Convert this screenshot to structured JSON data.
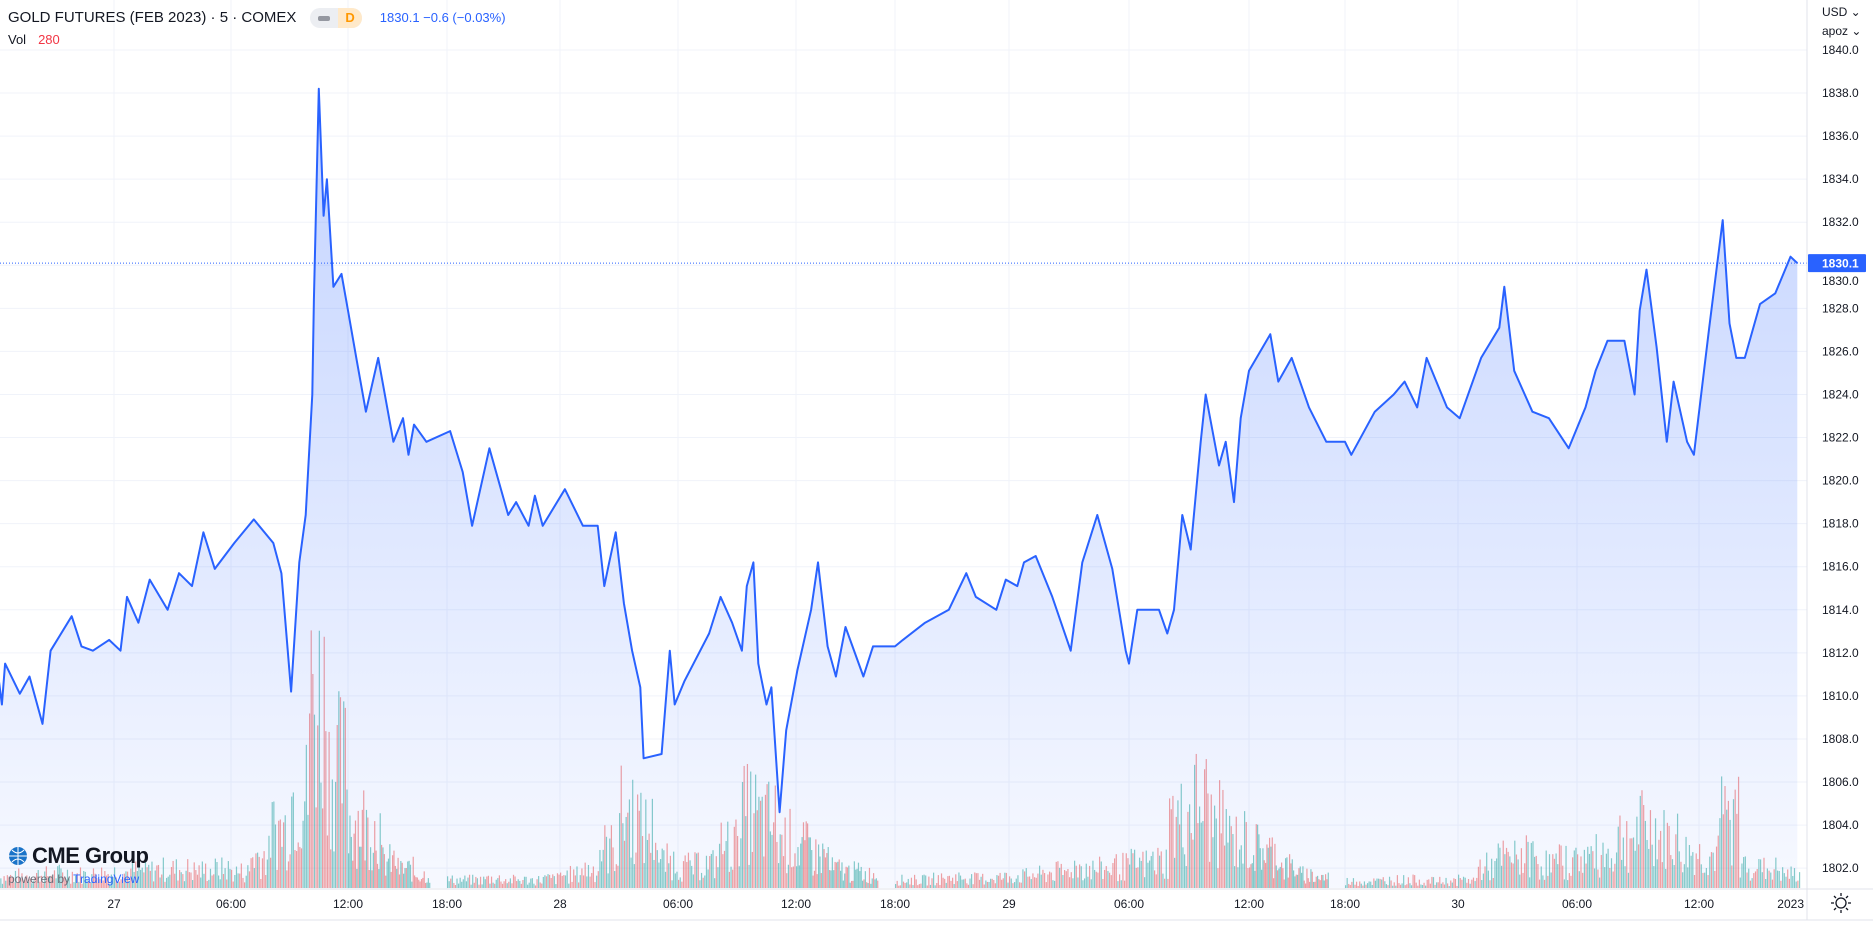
{
  "header": {
    "title": "GOLD FUTURES (FEB 2023) · 5 · COMEX",
    "interval_badge": "D",
    "quote": "1830.1 −0.6 (−0.03%)",
    "vol_label": "Vol",
    "vol_value": "280"
  },
  "price_axis": {
    "currency": "USD ⌄",
    "unit": "apoz ⌄"
  },
  "branding": {
    "logo": "CME Group",
    "powered_by": "powered by",
    "platform": "TradingView"
  },
  "icons": {
    "settings": "sun-gear-icon",
    "logo": "globe-icon"
  },
  "colors": {
    "line": "#2962ff",
    "up_volume": "#26a69a",
    "down_volume": "#ef5350",
    "last_price_label": "#2962ff",
    "vol_value": "#f23645"
  },
  "chart_data": {
    "type": "area",
    "title": "GOLD FUTURES (FEB 2023) · 5 · COMEX",
    "ylim": [
      1801,
      1841
    ],
    "yticks": [
      "1840.0",
      "1838.0",
      "1836.0",
      "1834.0",
      "1832.0",
      "1830.0",
      "1828.0",
      "1826.0",
      "1824.0",
      "1822.0",
      "1820.0",
      "1818.0",
      "1816.0",
      "1814.0",
      "1812.0",
      "1810.0",
      "1808.0",
      "1806.0",
      "1804.0",
      "1802.0"
    ],
    "last_price": "1830.1",
    "grid": true,
    "xticks": [
      {
        "label": "27",
        "time": "2022-12-27 00:00"
      },
      {
        "label": "06:00",
        "time": "2022-12-27 06:00"
      },
      {
        "label": "12:00",
        "time": "2022-12-27 12:00"
      },
      {
        "label": "18:00",
        "time": "2022-12-27 18:00"
      },
      {
        "label": "28",
        "time": "2022-12-28 00:00"
      },
      {
        "label": "06:00",
        "time": "2022-12-28 06:00"
      },
      {
        "label": "12:00",
        "time": "2022-12-28 12:00"
      },
      {
        "label": "18:00",
        "time": "2022-12-28 18:00"
      },
      {
        "label": "29",
        "time": "2022-12-29 00:00"
      },
      {
        "label": "06:00",
        "time": "2022-12-29 06:00"
      },
      {
        "label": "12:00",
        "time": "2022-12-29 12:00"
      },
      {
        "label": "18:00",
        "time": "2022-12-29 18:00"
      },
      {
        "label": "30",
        "time": "2022-12-30 00:00"
      },
      {
        "label": "06:00",
        "time": "2022-12-30 06:00"
      },
      {
        "label": "12:00",
        "time": "2022-12-30 12:00"
      },
      {
        "label": "2023"
      }
    ],
    "series": [
      {
        "points": [
          [
            "2022-12-26 18:00",
            1811.4
          ],
          [
            "2022-12-26 18:15",
            1809.6
          ],
          [
            "2022-12-26 18:25",
            1811.5
          ],
          [
            "2022-12-26 19:10",
            1810.1
          ],
          [
            "2022-12-26 19:40",
            1810.9
          ],
          [
            "2022-12-26 20:20",
            1808.7
          ],
          [
            "2022-12-26 20:45",
            1812.1
          ],
          [
            "2022-12-26 21:50",
            1813.7
          ],
          [
            "2022-12-26 22:20",
            1812.3
          ],
          [
            "2022-12-26 22:55",
            1812.1
          ],
          [
            "2022-12-26 23:45",
            1812.6
          ],
          [
            "2022-12-27 00:20",
            1812.1
          ],
          [
            "2022-12-27 00:40",
            1814.6
          ],
          [
            "2022-12-27 01:15",
            1813.4
          ],
          [
            "2022-12-27 01:50",
            1815.4
          ],
          [
            "2022-12-27 02:45",
            1814.0
          ],
          [
            "2022-12-27 03:20",
            1815.7
          ],
          [
            "2022-12-27 04:00",
            1815.1
          ],
          [
            "2022-12-27 04:35",
            1817.6
          ],
          [
            "2022-12-27 05:10",
            1815.9
          ],
          [
            "2022-12-27 06:10",
            1817.1
          ],
          [
            "2022-12-27 07:10",
            1818.2
          ],
          [
            "2022-12-27 08:10",
            1817.1
          ],
          [
            "2022-12-27 08:35",
            1815.7
          ],
          [
            "2022-12-27 09:05",
            1810.2
          ],
          [
            "2022-12-27 09:30",
            1816.2
          ],
          [
            "2022-12-27 09:50",
            1818.4
          ],
          [
            "2022-12-27 10:10",
            1824.0
          ],
          [
            "2022-12-27 10:15",
            1828.4
          ],
          [
            "2022-12-27 10:30",
            1838.2
          ],
          [
            "2022-12-27 10:45",
            1832.3
          ],
          [
            "2022-12-27 10:55",
            1834.0
          ],
          [
            "2022-12-27 11:15",
            1829.0
          ],
          [
            "2022-12-27 11:40",
            1829.6
          ],
          [
            "2022-12-27 12:00",
            1827.9
          ],
          [
            "2022-12-27 12:30",
            1825.7
          ],
          [
            "2022-12-27 13:05",
            1823.2
          ],
          [
            "2022-12-27 13:50",
            1825.7
          ],
          [
            "2022-12-27 14:45",
            1821.8
          ],
          [
            "2022-12-27 15:20",
            1822.9
          ],
          [
            "2022-12-27 15:40",
            1821.2
          ],
          [
            "2022-12-27 16:00",
            1822.6
          ],
          [
            "2022-12-27 16:45",
            1821.8
          ],
          [
            "2022-12-27 18:10",
            1822.3
          ],
          [
            "2022-12-27 18:50",
            1820.4
          ],
          [
            "2022-12-27 19:20",
            1817.9
          ],
          [
            "2022-12-27 20:15",
            1821.5
          ],
          [
            "2022-12-27 21:15",
            1818.4
          ],
          [
            "2022-12-27 21:40",
            1819.0
          ],
          [
            "2022-12-27 22:20",
            1817.9
          ],
          [
            "2022-12-27 22:40",
            1819.3
          ],
          [
            "2022-12-27 23:05",
            1817.9
          ],
          [
            "2022-12-28 00:15",
            1819.6
          ],
          [
            "2022-12-28 01:10",
            1817.9
          ],
          [
            "2022-12-28 01:55",
            1817.9
          ],
          [
            "2022-12-28 02:15",
            1815.1
          ],
          [
            "2022-12-28 02:30",
            1816.2
          ],
          [
            "2022-12-28 02:50",
            1817.6
          ],
          [
            "2022-12-28 03:15",
            1814.3
          ],
          [
            "2022-12-28 03:40",
            1812.1
          ],
          [
            "2022-12-28 04:05",
            1810.4
          ],
          [
            "2022-12-28 04:15",
            1807.1
          ],
          [
            "2022-12-28 05:10",
            1807.3
          ],
          [
            "2022-12-28 05:35",
            1812.1
          ],
          [
            "2022-12-28 05:50",
            1809.6
          ],
          [
            "2022-12-28 06:20",
            1810.7
          ],
          [
            "2022-12-28 07:35",
            1812.9
          ],
          [
            "2022-12-28 08:10",
            1814.6
          ],
          [
            "2022-12-28 08:45",
            1813.4
          ],
          [
            "2022-12-28 09:15",
            1812.1
          ],
          [
            "2022-12-28 09:30",
            1815.1
          ],
          [
            "2022-12-28 09:50",
            1816.2
          ],
          [
            "2022-12-28 10:05",
            1811.5
          ],
          [
            "2022-12-28 10:30",
            1809.6
          ],
          [
            "2022-12-28 10:45",
            1810.4
          ],
          [
            "2022-12-28 11:10",
            1804.6
          ],
          [
            "2022-12-28 11:30",
            1808.4
          ],
          [
            "2022-12-28 12:05",
            1811.2
          ],
          [
            "2022-12-28 12:55",
            1814.0
          ],
          [
            "2022-12-28 13:20",
            1816.2
          ],
          [
            "2022-12-28 13:55",
            1812.3
          ],
          [
            "2022-12-28 14:25",
            1810.9
          ],
          [
            "2022-12-28 15:00",
            1813.2
          ],
          [
            "2022-12-28 16:05",
            1810.9
          ],
          [
            "2022-12-28 16:40",
            1812.3
          ],
          [
            "2022-12-28 18:00",
            1812.3
          ],
          [
            "2022-12-28 18:25",
            1812.6
          ],
          [
            "2022-12-28 19:35",
            1813.4
          ],
          [
            "2022-12-28 20:50",
            1814.0
          ],
          [
            "2022-12-28 21:45",
            1815.7
          ],
          [
            "2022-12-28 22:15",
            1814.6
          ],
          [
            "2022-12-28 23:20",
            1814.0
          ],
          [
            "2022-12-28 23:50",
            1815.4
          ],
          [
            "2022-12-29 00:25",
            1815.1
          ],
          [
            "2022-12-29 00:45",
            1816.2
          ],
          [
            "2022-12-29 01:20",
            1816.5
          ],
          [
            "2022-12-29 02:10",
            1814.6
          ],
          [
            "2022-12-29 03:05",
            1812.1
          ],
          [
            "2022-12-29 03:40",
            1816.2
          ],
          [
            "2022-12-29 04:25",
            1818.4
          ],
          [
            "2022-12-29 05:10",
            1815.9
          ],
          [
            "2022-12-29 05:50",
            1812.1
          ],
          [
            "2022-12-29 06:00",
            1811.5
          ],
          [
            "2022-12-29 06:25",
            1814.0
          ],
          [
            "2022-12-29 07:30",
            1814.0
          ],
          [
            "2022-12-29 07:55",
            1812.9
          ],
          [
            "2022-12-29 08:15",
            1814.0
          ],
          [
            "2022-12-29 08:40",
            1818.4
          ],
          [
            "2022-12-29 09:05",
            1816.8
          ],
          [
            "2022-12-29 09:35",
            1821.8
          ],
          [
            "2022-12-29 09:50",
            1824.0
          ],
          [
            "2022-12-29 10:30",
            1820.7
          ],
          [
            "2022-12-29 10:50",
            1821.8
          ],
          [
            "2022-12-29 11:15",
            1819.0
          ],
          [
            "2022-12-29 11:35",
            1822.9
          ],
          [
            "2022-12-29 12:00",
            1825.1
          ],
          [
            "2022-12-29 13:20",
            1826.8
          ],
          [
            "2022-12-29 13:50",
            1824.6
          ],
          [
            "2022-12-29 14:40",
            1825.7
          ],
          [
            "2022-12-29 15:45",
            1823.4
          ],
          [
            "2022-12-29 16:50",
            1821.8
          ],
          [
            "2022-12-29 18:00",
            1821.8
          ],
          [
            "2022-12-29 18:20",
            1821.2
          ],
          [
            "2022-12-29 19:35",
            1823.2
          ],
          [
            "2022-12-29 20:35",
            1824.0
          ],
          [
            "2022-12-29 21:10",
            1824.6
          ],
          [
            "2022-12-29 21:50",
            1823.4
          ],
          [
            "2022-12-29 22:20",
            1825.7
          ],
          [
            "2022-12-29 23:25",
            1823.4
          ],
          [
            "2022-12-30 00:05",
            1822.9
          ],
          [
            "2022-12-30 01:10",
            1825.7
          ],
          [
            "2022-12-30 02:05",
            1827.1
          ],
          [
            "2022-12-30 02:20",
            1829.0
          ],
          [
            "2022-12-30 02:50",
            1825.1
          ],
          [
            "2022-12-30 03:45",
            1823.2
          ],
          [
            "2022-12-30 04:35",
            1822.9
          ],
          [
            "2022-12-30 05:35",
            1821.5
          ],
          [
            "2022-12-30 06:25",
            1823.4
          ],
          [
            "2022-12-30 06:55",
            1825.1
          ],
          [
            "2022-12-30 07:30",
            1826.5
          ],
          [
            "2022-12-30 08:20",
            1826.5
          ],
          [
            "2022-12-30 08:50",
            1824.0
          ],
          [
            "2022-12-30 09:05",
            1827.9
          ],
          [
            "2022-12-30 09:25",
            1829.8
          ],
          [
            "2022-12-30 09:55",
            1826.2
          ],
          [
            "2022-12-30 10:25",
            1821.8
          ],
          [
            "2022-12-30 10:45",
            1824.6
          ],
          [
            "2022-12-30 11:25",
            1821.8
          ],
          [
            "2022-12-30 11:45",
            1821.2
          ],
          [
            "2022-12-30 12:30",
            1827.1
          ],
          [
            "2022-12-30 13:10",
            1832.1
          ],
          [
            "2022-12-30 13:30",
            1827.3
          ],
          [
            "2022-12-30 13:50",
            1825.7
          ],
          [
            "2022-12-30 14:15",
            1825.7
          ],
          [
            "2022-12-30 15:00",
            1828.2
          ],
          [
            "2022-12-30 15:45",
            1828.7
          ],
          [
            "2022-12-30 16:30",
            1830.4
          ],
          [
            "2022-12-30 16:50",
            1830.1
          ]
        ]
      }
    ],
    "volume": [
      [
        "2022-12-26 18:00",
        400
      ],
      [
        "2022-12-26 19:00",
        450
      ],
      [
        "2022-12-26 20:00",
        500
      ],
      [
        "2022-12-26 21:00",
        550
      ],
      [
        "2022-12-26 22:00",
        500
      ],
      [
        "2022-12-26 23:00",
        550
      ],
      [
        "2022-12-27 00:00",
        600
      ],
      [
        "2022-12-27 01:00",
        650
      ],
      [
        "2022-12-27 02:00",
        700
      ],
      [
        "2022-12-27 03:00",
        700
      ],
      [
        "2022-12-27 04:00",
        650
      ],
      [
        "2022-12-27 05:00",
        700
      ],
      [
        "2022-12-27 06:00",
        600
      ],
      [
        "2022-12-27 07:00",
        1200
      ],
      [
        "2022-12-27 08:00",
        2200
      ],
      [
        "2022-12-27 09:00",
        3500
      ],
      [
        "2022-12-27 10:00",
        7000
      ],
      [
        "2022-12-27 11:00",
        4500
      ],
      [
        "2022-12-27 12:00",
        2500
      ],
      [
        "2022-12-27 13:00",
        2200
      ],
      [
        "2022-12-27 14:00",
        1000
      ],
      [
        "2022-12-27 15:00",
        700
      ],
      [
        "2022-12-27 16:00",
        500
      ],
      [
        "2022-12-27 18:00",
        300
      ],
      [
        "2022-12-27 19:00",
        300
      ],
      [
        "2022-12-27 20:00",
        350
      ],
      [
        "2022-12-27 21:00",
        300
      ],
      [
        "2022-12-27 22:00",
        300
      ],
      [
        "2022-12-27 23:00",
        350
      ],
      [
        "2022-12-28 00:00",
        500
      ],
      [
        "2022-12-28 01:00",
        700
      ],
      [
        "2022-12-28 02:00",
        1500
      ],
      [
        "2022-12-28 03:00",
        2800
      ],
      [
        "2022-12-28 04:00",
        2200
      ],
      [
        "2022-12-28 05:00",
        1000
      ],
      [
        "2022-12-28 06:00",
        800
      ],
      [
        "2022-12-28 07:00",
        900
      ],
      [
        "2022-12-28 08:00",
        1600
      ],
      [
        "2022-12-28 09:00",
        2800
      ],
      [
        "2022-12-28 10:00",
        2500
      ],
      [
        "2022-12-28 11:00",
        1800
      ],
      [
        "2022-12-28 12:00",
        1500
      ],
      [
        "2022-12-28 13:00",
        1200
      ],
      [
        "2022-12-28 14:00",
        700
      ],
      [
        "2022-12-28 15:00",
        600
      ],
      [
        "2022-12-28 16:00",
        500
      ],
      [
        "2022-12-28 18:00",
        300
      ],
      [
        "2022-12-28 19:00",
        300
      ],
      [
        "2022-12-28 20:00",
        350
      ],
      [
        "2022-12-28 21:00",
        400
      ],
      [
        "2022-12-28 22:00",
        350
      ],
      [
        "2022-12-28 23:00",
        400
      ],
      [
        "2022-12-29 00:00",
        450
      ],
      [
        "2022-12-29 01:00",
        500
      ],
      [
        "2022-12-29 02:00",
        600
      ],
      [
        "2022-12-29 03:00",
        800
      ],
      [
        "2022-12-29 04:00",
        700
      ],
      [
        "2022-12-29 05:00",
        800
      ],
      [
        "2022-12-29 06:00",
        900
      ],
      [
        "2022-12-29 07:00",
        1000
      ],
      [
        "2022-12-29 08:00",
        2500
      ],
      [
        "2022-12-29 09:00",
        3200
      ],
      [
        "2022-12-29 10:00",
        2400
      ],
      [
        "2022-12-29 11:00",
        1800
      ],
      [
        "2022-12-29 12:00",
        1500
      ],
      [
        "2022-12-29 13:00",
        1300
      ],
      [
        "2022-12-29 14:00",
        800
      ],
      [
        "2022-12-29 15:00",
        500
      ],
      [
        "2022-12-29 16:00",
        400
      ],
      [
        "2022-12-29 18:00",
        250
      ],
      [
        "2022-12-29 19:00",
        250
      ],
      [
        "2022-12-29 20:00",
        300
      ],
      [
        "2022-12-29 21:00",
        300
      ],
      [
        "2022-12-29 22:00",
        250
      ],
      [
        "2022-12-29 23:00",
        250
      ],
      [
        "2022-12-30 00:00",
        300
      ],
      [
        "2022-12-30 01:00",
        800
      ],
      [
        "2022-12-30 02:00",
        1100
      ],
      [
        "2022-12-30 03:00",
        1200
      ],
      [
        "2022-12-30 04:00",
        900
      ],
      [
        "2022-12-30 05:00",
        1000
      ],
      [
        "2022-12-30 06:00",
        1200
      ],
      [
        "2022-12-30 07:00",
        1300
      ],
      [
        "2022-12-30 08:00",
        1900
      ],
      [
        "2022-12-30 09:00",
        2200
      ],
      [
        "2022-12-30 10:00",
        1800
      ],
      [
        "2022-12-30 11:00",
        1300
      ],
      [
        "2022-12-30 12:00",
        1200
      ],
      [
        "2022-12-30 13:00",
        2600
      ],
      [
        "2022-12-30 14:00",
        900
      ],
      [
        "2022-12-30 15:00",
        700
      ],
      [
        "2022-12-30 16:00",
        500
      ]
    ]
  }
}
